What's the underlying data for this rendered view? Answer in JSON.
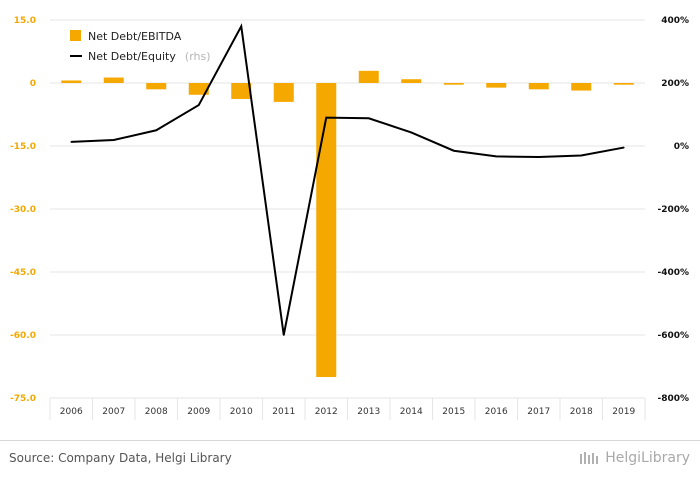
{
  "chart_data": {
    "type": "bar",
    "categories": [
      "2006",
      "2007",
      "2008",
      "2009",
      "2010",
      "2011",
      "2012",
      "2013",
      "2014",
      "2015",
      "2016",
      "2017",
      "2018",
      "2019"
    ],
    "series": [
      {
        "name": "Net Debt/EBITDA",
        "chart_type": "bar",
        "axis": "left",
        "color": "#f5a800",
        "values": [
          0.6,
          1.3,
          -1.5,
          -2.8,
          -3.8,
          -4.5,
          -70.0,
          2.9,
          0.9,
          -0.4,
          -1.1,
          -1.5,
          -1.8,
          -0.4
        ]
      },
      {
        "name": "Net Debt/Equity",
        "name_note": "(rhs)",
        "chart_type": "line",
        "axis": "right",
        "color": "#000000",
        "values": [
          13,
          19,
          50,
          130,
          380,
          -600,
          90,
          88,
          43,
          -15,
          -33,
          -35,
          -30,
          -5
        ]
      }
    ],
    "left_axis": {
      "ylim": [
        -75,
        15
      ],
      "ticks": [
        15,
        0,
        -15,
        -30,
        -45,
        -60,
        -75
      ],
      "tick_labels": [
        "15.0",
        "0",
        "-15.0",
        "-30.0",
        "-45.0",
        "-60.0",
        "-75.0"
      ],
      "color": "#f5a800"
    },
    "right_axis": {
      "ylim": [
        -800,
        400
      ],
      "ticks": [
        400,
        200,
        0,
        -200,
        -400,
        -600,
        -800
      ],
      "tick_labels": [
        "400%",
        "200%",
        "0%",
        "-200%",
        "-400%",
        "-600%",
        "-800%"
      ],
      "color": "#111111"
    },
    "grid": true,
    "legend": "top-left",
    "title": "",
    "xlabel": "",
    "ylabel": ""
  },
  "footer": {
    "source": "Source: Company Data, Helgi Library",
    "brand": "HelgiLibrary"
  }
}
